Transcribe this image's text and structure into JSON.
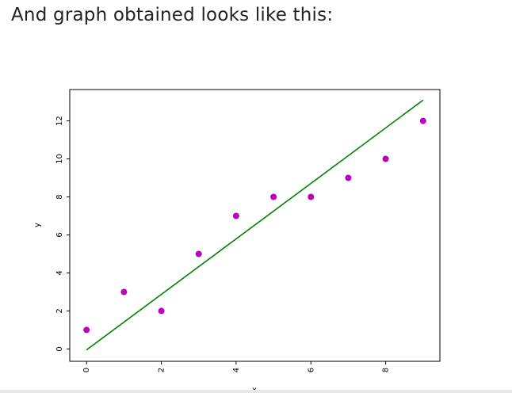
{
  "heading": "And graph obtained looks like this:",
  "chart_data": {
    "type": "scatter",
    "title": "",
    "xlabel": "x",
    "ylabel": "y",
    "xlim": [
      -0.45,
      9.45
    ],
    "ylim": [
      -0.65,
      13.65
    ],
    "xticks": [
      0,
      2,
      4,
      6,
      8
    ],
    "yticks": [
      0,
      2,
      4,
      6,
      8,
      10,
      12
    ],
    "grid": false,
    "legend": "none",
    "series": [
      {
        "kind": "scatter",
        "color": "#bf00bf",
        "x": [
          0,
          1,
          2,
          3,
          4,
          5,
          6,
          7,
          8,
          9
        ],
        "y": [
          1,
          3,
          2,
          5,
          7,
          8,
          8,
          9,
          10,
          12
        ]
      },
      {
        "kind": "line",
        "color": "#008000",
        "x": [
          0,
          9
        ],
        "y": [
          -0.05,
          13.09
        ]
      }
    ]
  }
}
